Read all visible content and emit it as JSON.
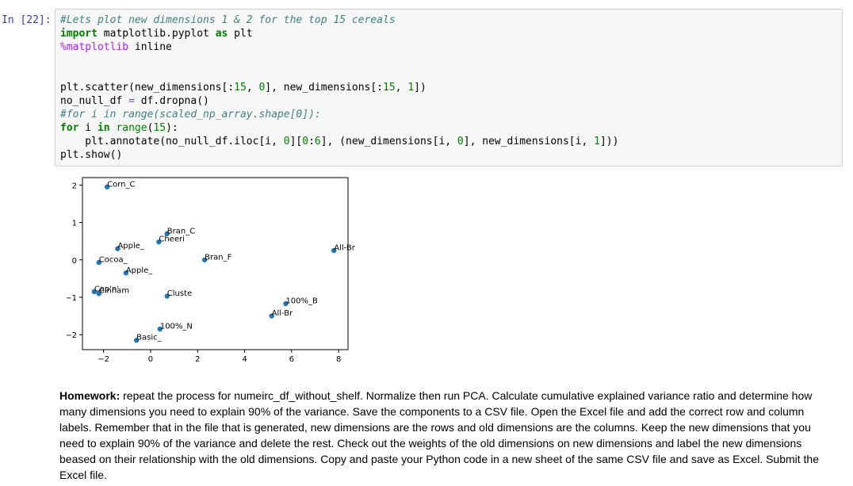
{
  "cell": {
    "prompt": "In [22]:",
    "code_lines": [
      [
        [
          "cm",
          "#Lets plot new dimensions 1 & 2 for the top 15 cereals"
        ]
      ],
      [
        [
          "kw",
          "import"
        ],
        [
          "",
          " matplotlib.pyplot "
        ],
        [
          "kw",
          "as"
        ],
        [
          "",
          " plt"
        ]
      ],
      [
        [
          "mg",
          "%matplotlib"
        ],
        [
          "",
          " inline"
        ]
      ],
      [
        [
          "",
          ""
        ]
      ],
      [
        [
          "",
          ""
        ]
      ],
      [
        [
          "",
          "plt.scatter(new_dimensions[:"
        ],
        [
          "nm",
          "15"
        ],
        [
          "",
          ", "
        ],
        [
          "nm",
          "0"
        ],
        [
          "",
          "], new_dimensions[:"
        ],
        [
          "nm",
          "15"
        ],
        [
          "",
          ", "
        ],
        [
          "nm",
          "1"
        ],
        [
          "",
          "])"
        ]
      ],
      [
        [
          "",
          "no_null_df "
        ],
        [
          "op",
          "="
        ],
        [
          "",
          " df.dropna()"
        ]
      ],
      [
        [
          "cm",
          "#for i in range(scaled_np_array.shape[0]):"
        ]
      ],
      [
        [
          "kw",
          "for"
        ],
        [
          "",
          " i "
        ],
        [
          "kw",
          "in"
        ],
        [
          "",
          " "
        ],
        [
          "bi",
          "range"
        ],
        [
          "",
          "("
        ],
        [
          "nm",
          "15"
        ],
        [
          "",
          "):"
        ]
      ],
      [
        [
          "",
          "    plt.annotate(no_null_df.iloc[i, "
        ],
        [
          "nm",
          "0"
        ],
        [
          "",
          "]["
        ],
        [
          "nm",
          "0"
        ],
        [
          "",
          ":"
        ],
        [
          "nm",
          "6"
        ],
        [
          "",
          "], (new_dimensions[i, "
        ],
        [
          "nm",
          "0"
        ],
        [
          "",
          "], new_dimensions[i, "
        ],
        [
          "nm",
          "1"
        ],
        [
          "",
          "]))"
        ]
      ],
      [
        [
          "",
          "plt.show()"
        ]
      ]
    ]
  },
  "chart_data": {
    "type": "scatter",
    "title": "",
    "xlabel": "",
    "ylabel": "",
    "xlim": [
      -2.9,
      8.4
    ],
    "ylim": [
      -2.4,
      2.2
    ],
    "xticks": [
      -2,
      0,
      2,
      4,
      6,
      8
    ],
    "yticks": [
      -2,
      -1,
      0,
      1,
      2
    ],
    "grid": false,
    "point_color": "#1f77b4",
    "points": [
      {
        "x": -1.85,
        "y": 1.95,
        "label": "Corn_C"
      },
      {
        "x": 0.7,
        "y": 0.7,
        "label": "Bran_C"
      },
      {
        "x": 0.35,
        "y": 0.48,
        "label": "Cheeri"
      },
      {
        "x": -1.4,
        "y": 0.3,
        "label": "Apple_"
      },
      {
        "x": 7.8,
        "y": 0.25,
        "label": "All-Br"
      },
      {
        "x": 2.3,
        "y": 0.0,
        "label": "Bran_F"
      },
      {
        "x": -2.2,
        "y": -0.07,
        "label": "Cocoa_"
      },
      {
        "x": -1.05,
        "y": -0.35,
        "label": "Apple_"
      },
      {
        "x": -2.4,
        "y": -0.85,
        "label": "Cap'n'"
      },
      {
        "x": -2.2,
        "y": -0.9,
        "label": "Cinnam"
      },
      {
        "x": 0.7,
        "y": -0.97,
        "label": "Cluste"
      },
      {
        "x": 5.75,
        "y": -1.17,
        "label": "100%_B"
      },
      {
        "x": 5.15,
        "y": -1.5,
        "label": "All-Br"
      },
      {
        "x": 0.4,
        "y": -1.85,
        "label": "100%_N"
      },
      {
        "x": -0.6,
        "y": -2.15,
        "label": "Basic_"
      }
    ]
  },
  "homework": {
    "label": "Homework:",
    "text": " repeat the process for numeirc_df_without_shelf. Normalize then run PCA. Calculate cumulative explained variance ratio and determine how many dimensions you need to explain 90% of the variance. Save the components to a CSV file. Open the Excel file and add the correct row and column labels. Remember that in the file that is generated, new dimensions are the rows and old dimensions are the columns. Keep the new dimensions that you need to explain 90% of the variance and delete the rest. Check out the weights of the old dimensions on new dimensions and label the new dimensions beased on their relationship with the old dimensions. Copy and paste your Python code in a new sheet of the same CSV file and save as Excel. Submit the Excel file."
  }
}
